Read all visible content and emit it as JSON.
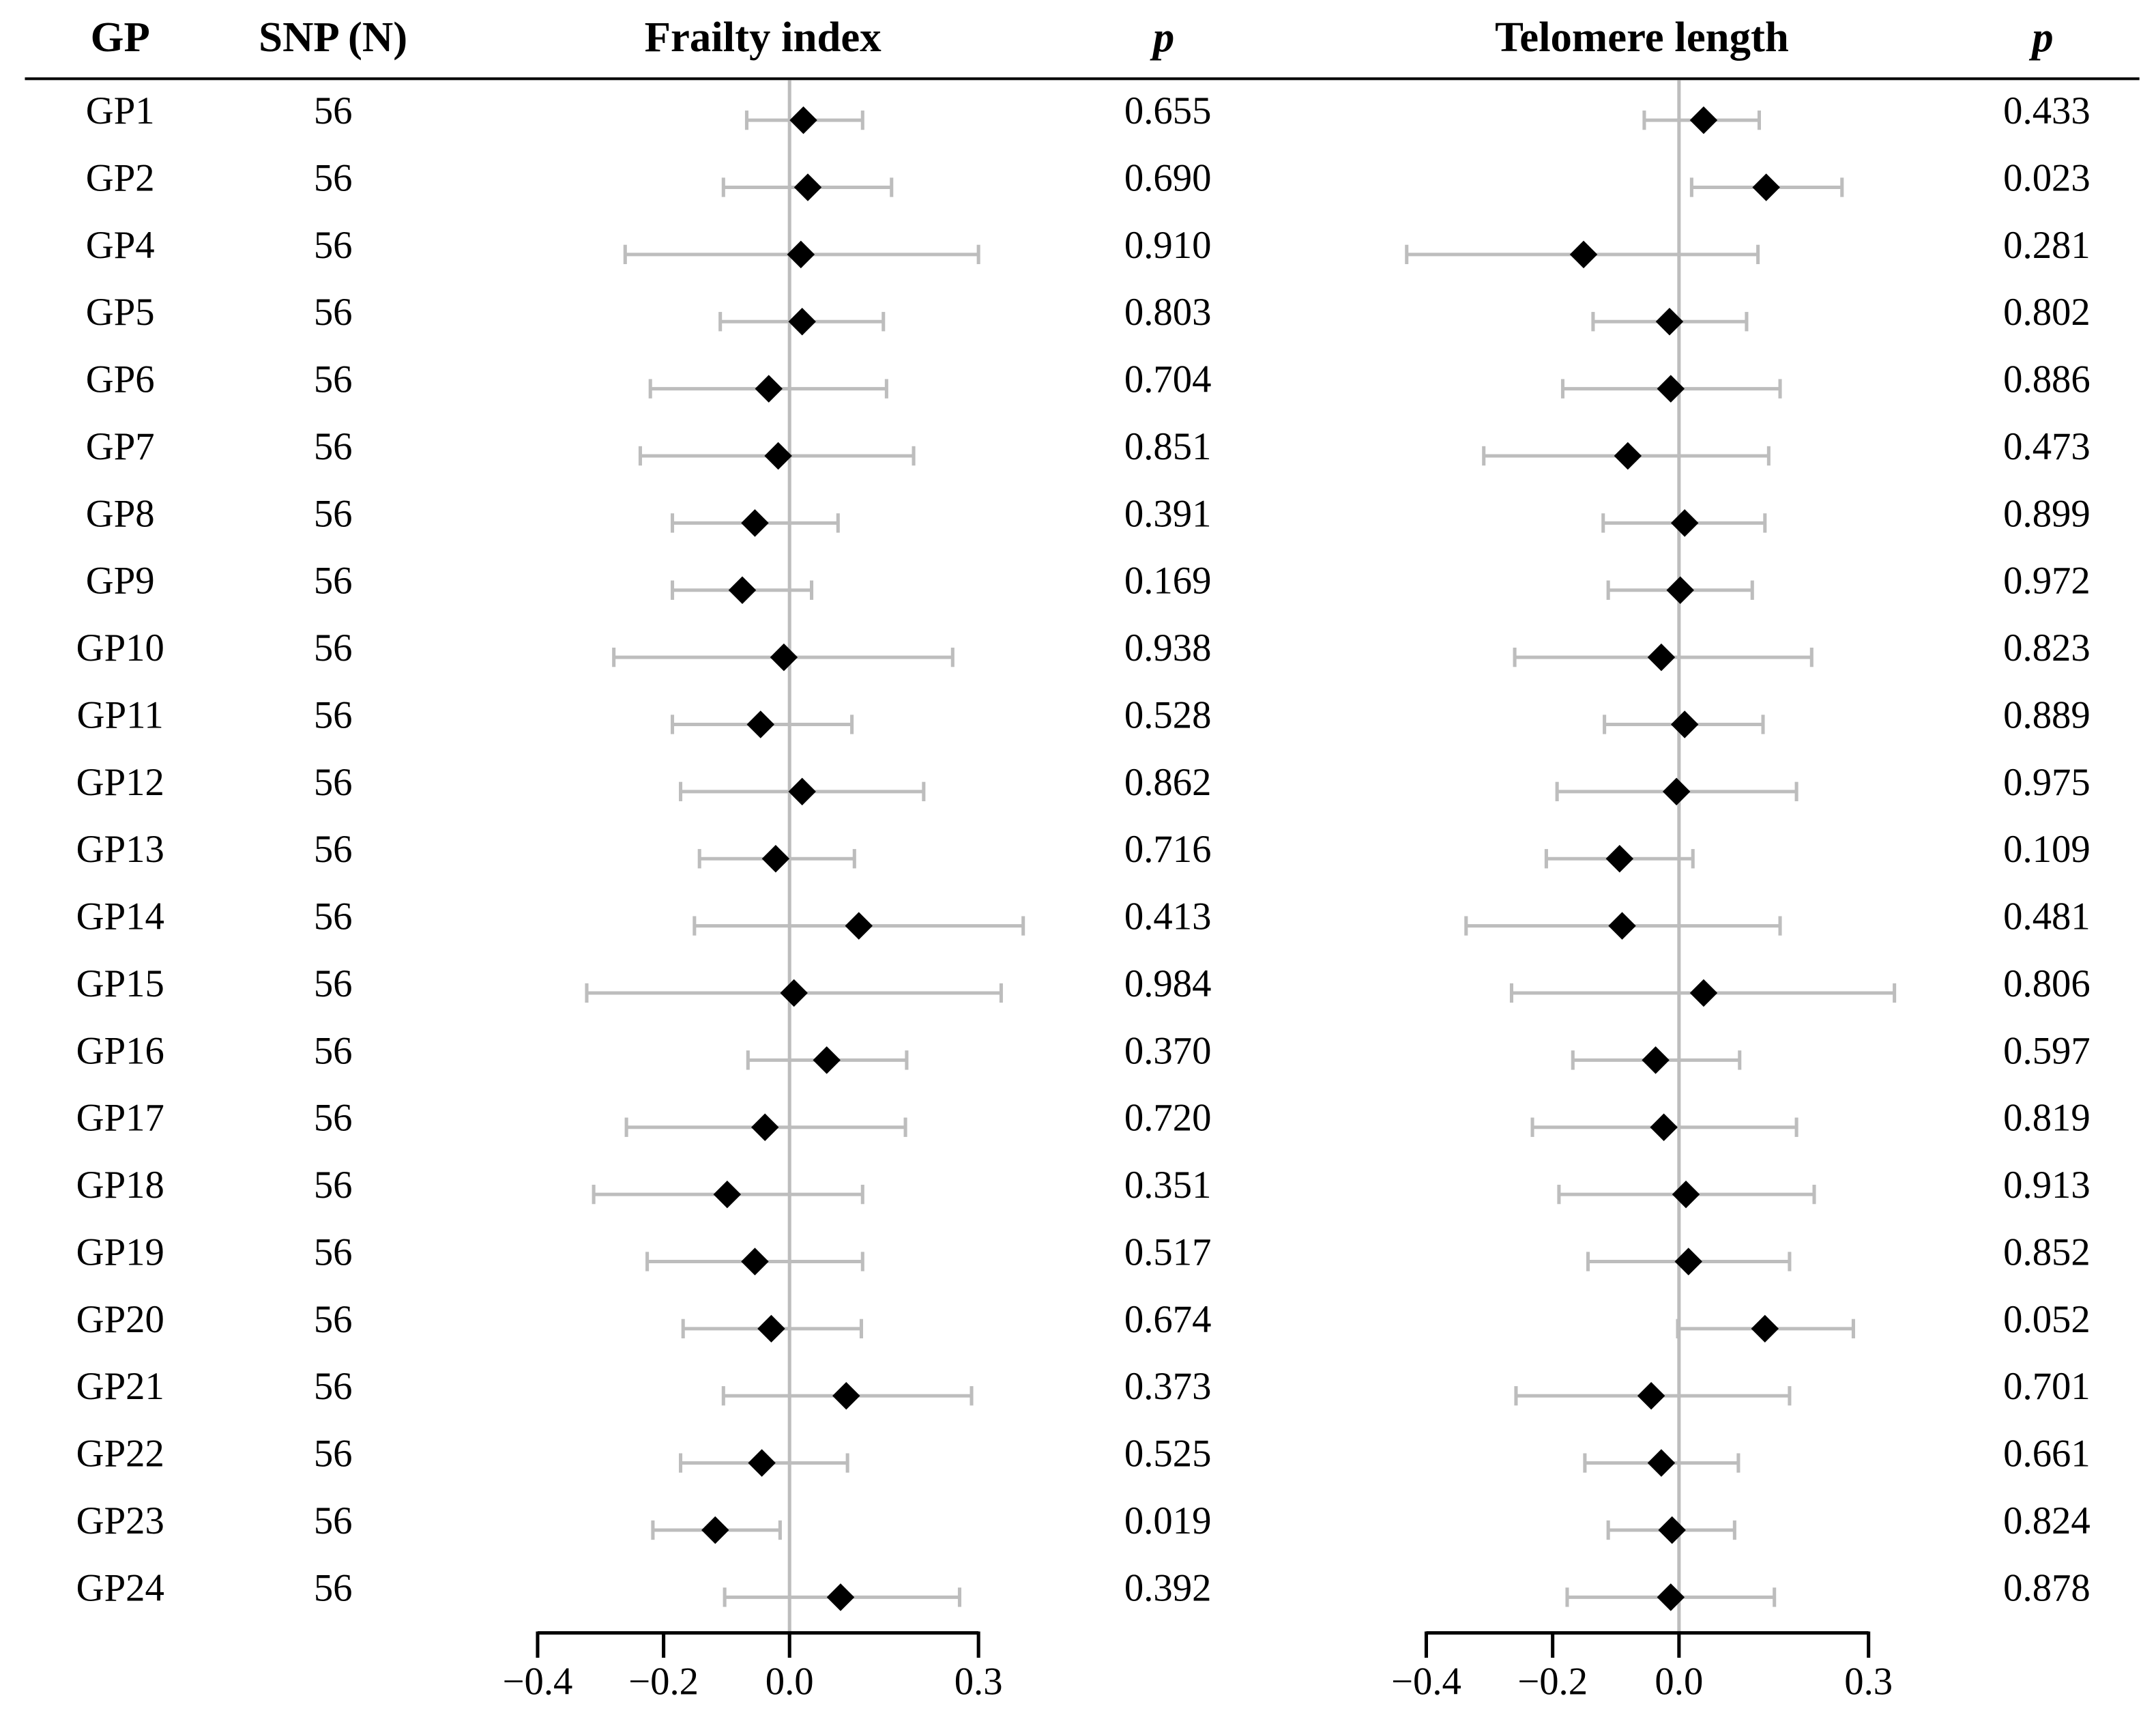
{
  "table": {
    "gp_header": "GP",
    "snp_header": "SNP (N)",
    "snp_counts": [
      56,
      56,
      56,
      56,
      56,
      56,
      56,
      56,
      56,
      56,
      56,
      56,
      56,
      56,
      56,
      56,
      56,
      56,
      56,
      56,
      56,
      56,
      56
    ]
  },
  "chart_data": [
    {
      "type": "forest",
      "title": "Frailty index",
      "categories": [
        "GP1",
        "GP2",
        "GP4",
        "GP5",
        "GP6",
        "GP7",
        "GP8",
        "GP9",
        "GP10",
        "GP11",
        "GP12",
        "GP13",
        "GP14",
        "GP15",
        "GP16",
        "GP17",
        "GP18",
        "GP19",
        "GP20",
        "GP21",
        "GP22",
        "GP23",
        "GP24"
      ],
      "values": [
        0.022,
        0.029,
        0.018,
        0.02,
        -0.033,
        -0.018,
        -0.055,
        -0.075,
        -0.009,
        -0.046,
        0.02,
        -0.022,
        0.11,
        0.007,
        0.059,
        -0.039,
        -0.099,
        -0.055,
        -0.029,
        0.09,
        -0.044,
        -0.118,
        0.081
      ],
      "lower": [
        -0.068,
        -0.105,
        -0.261,
        -0.11,
        -0.221,
        -0.237,
        -0.186,
        -0.186,
        -0.279,
        -0.186,
        -0.173,
        -0.143,
        -0.151,
        -0.322,
        -0.066,
        -0.259,
        -0.311,
        -0.226,
        -0.169,
        -0.105,
        -0.173,
        -0.217,
        -0.103
      ],
      "upper": [
        0.116,
        0.162,
        0.3,
        0.149,
        0.154,
        0.197,
        0.077,
        0.035,
        0.259,
        0.099,
        0.213,
        0.103,
        0.371,
        0.336,
        0.186,
        0.184,
        0.116,
        0.116,
        0.114,
        0.289,
        0.092,
        -0.015,
        0.27
      ],
      "p_header": "p",
      "p_values": [
        "0.655",
        "0.690",
        "0.910",
        "0.803",
        "0.704",
        "0.851",
        "0.391",
        "0.169",
        "0.938",
        "0.528",
        "0.862",
        "0.716",
        "0.413",
        "0.984",
        "0.370",
        "0.720",
        "0.351",
        "0.517",
        "0.674",
        "0.373",
        "0.525",
        "0.019",
        "0.392"
      ],
      "xlim": [
        -0.4,
        0.3
      ],
      "xticks": [
        {
          "value": -0.4,
          "label": "−0.4"
        },
        {
          "value": -0.2,
          "label": "−0.2"
        },
        {
          "value": 0,
          "label": "0.0"
        },
        {
          "value": 0.3,
          "label": "0.3"
        }
      ],
      "reference_line": 0,
      "color": "#000000",
      "ci_color": "#bdbdbd"
    },
    {
      "type": "forest",
      "title": "Telomere length",
      "values": [
        0.039,
        0.138,
        -0.151,
        -0.015,
        -0.013,
        -0.081,
        0.009,
        0.002,
        -0.028,
        0.009,
        -0.004,
        -0.094,
        -0.09,
        0.039,
        -0.037,
        -0.024,
        0.011,
        0.015,
        0.136,
        -0.044,
        -0.028,
        -0.011,
        -0.013
      ],
      "lower": [
        -0.055,
        0.02,
        -0.431,
        -0.136,
        -0.184,
        -0.309,
        -0.12,
        -0.112,
        -0.26,
        -0.118,
        -0.193,
        -0.21,
        -0.337,
        -0.265,
        -0.168,
        -0.232,
        -0.19,
        -0.144,
        -0.002,
        -0.258,
        -0.149,
        -0.112,
        -0.177
      ],
      "upper": [
        0.127,
        0.258,
        0.125,
        0.107,
        0.16,
        0.142,
        0.136,
        0.116,
        0.21,
        0.133,
        0.186,
        0.022,
        0.16,
        0.341,
        0.096,
        0.186,
        0.214,
        0.175,
        0.276,
        0.175,
        0.094,
        0.088,
        0.151
      ],
      "p_header": "p",
      "p_values": [
        "0.433",
        "0.023",
        "0.281",
        "0.802",
        "0.886",
        "0.473",
        "0.899",
        "0.972",
        "0.823",
        "0.889",
        "0.975",
        "0.109",
        "0.481",
        "0.806",
        "0.597",
        "0.819",
        "0.913",
        "0.852",
        "0.052",
        "0.701",
        "0.661",
        "0.824",
        "0.878"
      ],
      "xlim": [
        -0.4,
        0.3
      ],
      "xticks": [
        {
          "value": -0.4,
          "label": "−0.4"
        },
        {
          "value": -0.2,
          "label": "−0.2"
        },
        {
          "value": 0,
          "label": "0.0"
        },
        {
          "value": 0.3,
          "label": "0.3"
        }
      ],
      "reference_line": 0,
      "color": "#000000",
      "ci_color": "#bdbdbd"
    }
  ]
}
